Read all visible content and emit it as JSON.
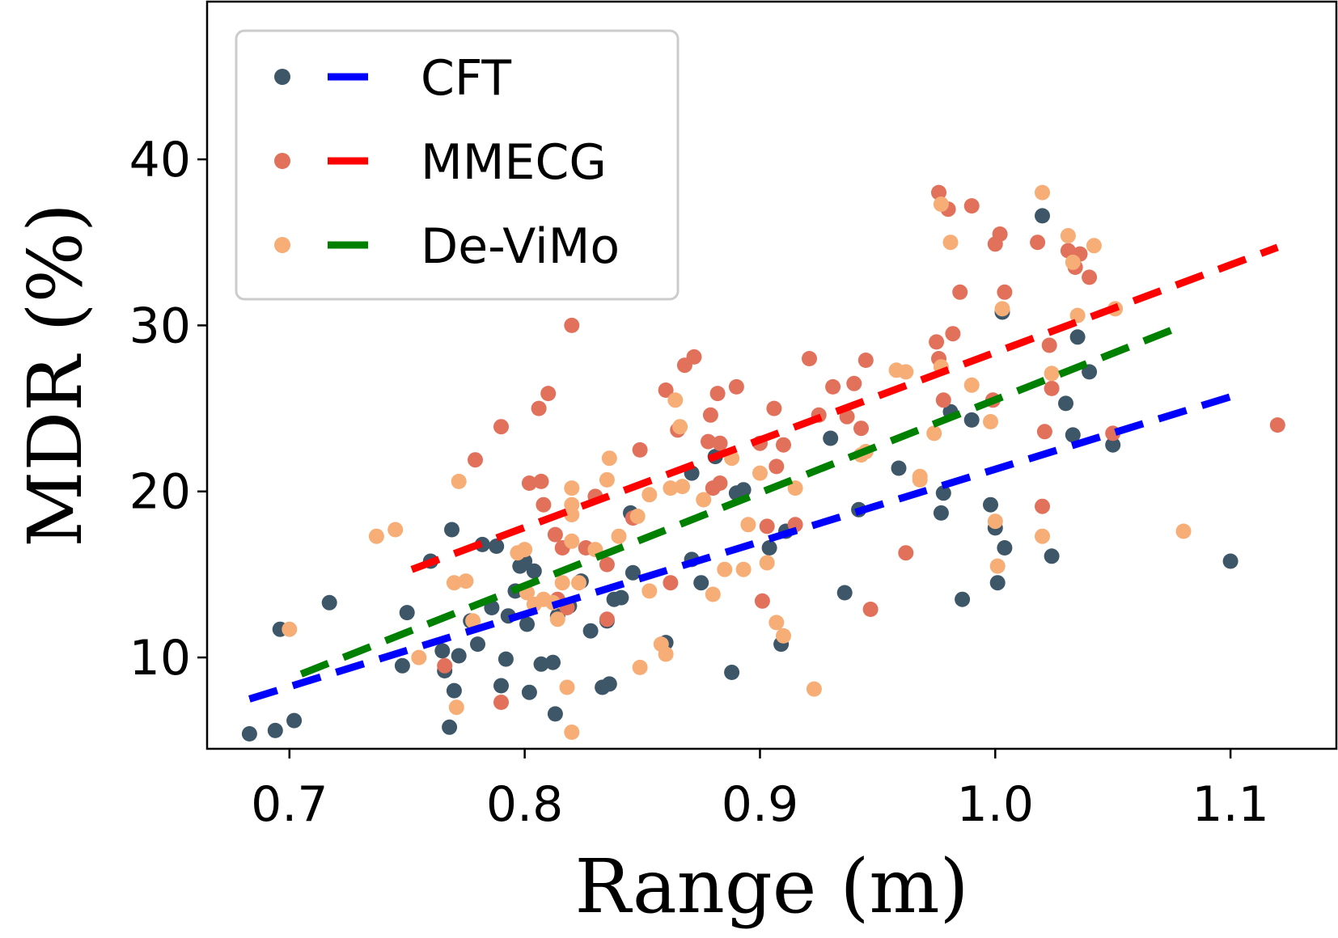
{
  "chart_data": {
    "type": "scatter",
    "title": "",
    "xlabel": "Range (m)",
    "ylabel": "MDR (%)",
    "xlim": [
      0.665,
      1.145
    ],
    "ylim": [
      4.5,
      49.5
    ],
    "xticks": [
      0.7,
      0.8,
      0.9,
      1.0,
      1.1
    ],
    "xtick_labels": [
      "0.7",
      "0.8",
      "0.9",
      "1.0",
      "1.1"
    ],
    "yticks": [
      10,
      20,
      30,
      40
    ],
    "ytick_labels": [
      "10",
      "20",
      "30",
      "40"
    ],
    "grid": false,
    "legend": "top-left",
    "series": [
      {
        "name": "CFT",
        "marker_color": "#3d5668",
        "line_color": "#0000ff",
        "trend": [
          [
            0.683,
            7.5
          ],
          [
            1.1,
            25.7
          ]
        ],
        "points": [
          [
            0.683,
            5.4
          ],
          [
            0.694,
            5.6
          ],
          [
            0.696,
            11.7
          ],
          [
            0.702,
            6.2
          ],
          [
            0.717,
            13.3
          ],
          [
            0.748,
            9.5
          ],
          [
            0.75,
            12.7
          ],
          [
            0.76,
            15.8
          ],
          [
            0.765,
            10.4
          ],
          [
            0.766,
            9.2
          ],
          [
            0.768,
            5.8
          ],
          [
            0.769,
            17.7
          ],
          [
            0.77,
            8.0
          ],
          [
            0.772,
            10.1
          ],
          [
            0.777,
            12.2
          ],
          [
            0.78,
            10.8
          ],
          [
            0.782,
            16.8
          ],
          [
            0.786,
            13.0
          ],
          [
            0.788,
            16.7
          ],
          [
            0.79,
            8.3
          ],
          [
            0.792,
            9.9
          ],
          [
            0.793,
            12.5
          ],
          [
            0.796,
            14.0
          ],
          [
            0.798,
            15.5
          ],
          [
            0.8,
            15.8
          ],
          [
            0.801,
            12.0
          ],
          [
            0.802,
            7.9
          ],
          [
            0.804,
            15.2
          ],
          [
            0.807,
            9.6
          ],
          [
            0.812,
            9.7
          ],
          [
            0.813,
            6.6
          ],
          [
            0.814,
            12.5
          ],
          [
            0.819,
            13.1
          ],
          [
            0.824,
            14.6
          ],
          [
            0.828,
            11.6
          ],
          [
            0.833,
            8.2
          ],
          [
            0.835,
            12.2
          ],
          [
            0.836,
            8.4
          ],
          [
            0.838,
            13.5
          ],
          [
            0.841,
            13.6
          ],
          [
            0.845,
            18.7
          ],
          [
            0.846,
            15.1
          ],
          [
            0.86,
            10.9
          ],
          [
            0.871,
            15.9
          ],
          [
            0.871,
            21.1
          ],
          [
            0.875,
            14.5
          ],
          [
            0.881,
            22.1
          ],
          [
            0.888,
            9.1
          ],
          [
            0.89,
            19.9
          ],
          [
            0.893,
            20.1
          ],
          [
            0.904,
            16.6
          ],
          [
            0.909,
            10.8
          ],
          [
            0.911,
            17.6
          ],
          [
            0.93,
            23.2
          ],
          [
            0.936,
            13.9
          ],
          [
            0.942,
            18.9
          ],
          [
            0.959,
            21.4
          ],
          [
            0.977,
            18.7
          ],
          [
            0.978,
            19.9
          ],
          [
            0.981,
            24.8
          ],
          [
            0.986,
            13.5
          ],
          [
            0.99,
            24.3
          ],
          [
            0.998,
            19.2
          ],
          [
            1.0,
            17.8
          ],
          [
            1.001,
            14.5
          ],
          [
            1.003,
            30.8
          ],
          [
            1.004,
            16.6
          ],
          [
            1.02,
            36.6
          ],
          [
            1.024,
            16.1
          ],
          [
            1.03,
            25.3
          ],
          [
            1.033,
            23.4
          ],
          [
            1.035,
            29.3
          ],
          [
            1.04,
            27.2
          ],
          [
            1.05,
            22.8
          ],
          [
            1.1,
            15.8
          ]
        ]
      },
      {
        "name": "MMECG",
        "marker_color": "#e2715b",
        "line_color": "#ff0000",
        "trend": [
          [
            0.752,
            15.3
          ],
          [
            1.12,
            34.7
          ]
        ],
        "points": [
          [
            0.766,
            9.5
          ],
          [
            0.779,
            21.9
          ],
          [
            0.79,
            7.3
          ],
          [
            0.79,
            23.9
          ],
          [
            0.802,
            20.5
          ],
          [
            0.807,
            20.6
          ],
          [
            0.808,
            19.2
          ],
          [
            0.806,
            25.0
          ],
          [
            0.81,
            25.9
          ],
          [
            0.813,
            17.4
          ],
          [
            0.814,
            13.5
          ],
          [
            0.816,
            16.6
          ],
          [
            0.818,
            13.0
          ],
          [
            0.82,
            30.0
          ],
          [
            0.826,
            16.6
          ],
          [
            0.83,
            19.7
          ],
          [
            0.835,
            15.6
          ],
          [
            0.835,
            12.3
          ],
          [
            0.846,
            18.4
          ],
          [
            0.849,
            22.5
          ],
          [
            0.86,
            26.1
          ],
          [
            0.862,
            14.5
          ],
          [
            0.865,
            23.7
          ],
          [
            0.868,
            27.6
          ],
          [
            0.872,
            28.1
          ],
          [
            0.878,
            23.0
          ],
          [
            0.879,
            24.6
          ],
          [
            0.88,
            20.2
          ],
          [
            0.882,
            25.9
          ],
          [
            0.883,
            22.9
          ],
          [
            0.883,
            20.5
          ],
          [
            0.89,
            26.3
          ],
          [
            0.9,
            22.9
          ],
          [
            0.901,
            13.4
          ],
          [
            0.903,
            17.9
          ],
          [
            0.906,
            25.0
          ],
          [
            0.907,
            21.5
          ],
          [
            0.91,
            22.8
          ],
          [
            0.915,
            18.0
          ],
          [
            0.921,
            28.0
          ],
          [
            0.925,
            24.6
          ],
          [
            0.931,
            26.3
          ],
          [
            0.937,
            24.5
          ],
          [
            0.94,
            26.5
          ],
          [
            0.943,
            23.8
          ],
          [
            0.945,
            27.9
          ],
          [
            0.947,
            12.9
          ],
          [
            0.962,
            16.3
          ],
          [
            0.976,
            38.0
          ],
          [
            0.975,
            29.0
          ],
          [
            0.976,
            28.0
          ],
          [
            0.978,
            25.5
          ],
          [
            0.98,
            37.0
          ],
          [
            0.982,
            29.5
          ],
          [
            0.985,
            32.0
          ],
          [
            0.99,
            37.2
          ],
          [
            0.999,
            25.5
          ],
          [
            1.0,
            34.9
          ],
          [
            1.002,
            35.5
          ],
          [
            1.004,
            32.0
          ],
          [
            1.018,
            35.0
          ],
          [
            1.02,
            19.1
          ],
          [
            1.021,
            23.6
          ],
          [
            1.023,
            28.8
          ],
          [
            1.024,
            26.2
          ],
          [
            1.031,
            34.5
          ],
          [
            1.034,
            33.5
          ],
          [
            1.036,
            34.3
          ],
          [
            1.04,
            32.9
          ],
          [
            1.05,
            23.5
          ],
          [
            1.12,
            24.0
          ]
        ]
      },
      {
        "name": "De-ViMo",
        "marker_color": "#f6ad76",
        "line_color": "#008000",
        "trend": [
          [
            0.705,
            9.0
          ],
          [
            1.08,
            30.0
          ]
        ],
        "points": [
          [
            0.7,
            11.7
          ],
          [
            0.737,
            17.3
          ],
          [
            0.745,
            17.7
          ],
          [
            0.755,
            10.0
          ],
          [
            0.77,
            14.5
          ],
          [
            0.771,
            7.0
          ],
          [
            0.772,
            20.6
          ],
          [
            0.775,
            14.6
          ],
          [
            0.778,
            12.2
          ],
          [
            0.797,
            16.3
          ],
          [
            0.8,
            16.5
          ],
          [
            0.801,
            13.9
          ],
          [
            0.804,
            13.2
          ],
          [
            0.808,
            13.5
          ],
          [
            0.812,
            13.3
          ],
          [
            0.814,
            12.3
          ],
          [
            0.816,
            14.5
          ],
          [
            0.818,
            8.2
          ],
          [
            0.82,
            5.5
          ],
          [
            0.82,
            19.2
          ],
          [
            0.82,
            20.2
          ],
          [
            0.82,
            18.6
          ],
          [
            0.82,
            17.0
          ],
          [
            0.823,
            14.5
          ],
          [
            0.83,
            16.5
          ],
          [
            0.835,
            20.7
          ],
          [
            0.836,
            22.0
          ],
          [
            0.84,
            17.3
          ],
          [
            0.848,
            18.5
          ],
          [
            0.849,
            9.4
          ],
          [
            0.853,
            14.0
          ],
          [
            0.853,
            19.8
          ],
          [
            0.858,
            10.8
          ],
          [
            0.86,
            10.2
          ],
          [
            0.862,
            20.2
          ],
          [
            0.864,
            25.5
          ],
          [
            0.866,
            23.9
          ],
          [
            0.867,
            20.3
          ],
          [
            0.876,
            19.5
          ],
          [
            0.88,
            13.8
          ],
          [
            0.885,
            15.3
          ],
          [
            0.888,
            22.0
          ],
          [
            0.893,
            15.3
          ],
          [
            0.895,
            18.0
          ],
          [
            0.9,
            21.1
          ],
          [
            0.903,
            15.7
          ],
          [
            0.907,
            12.1
          ],
          [
            0.91,
            11.3
          ],
          [
            0.915,
            20.2
          ],
          [
            0.923,
            8.1
          ],
          [
            0.943,
            22.2
          ],
          [
            0.945,
            22.4
          ],
          [
            0.958,
            27.3
          ],
          [
            0.962,
            27.2
          ],
          [
            0.968,
            20.9
          ],
          [
            0.968,
            20.7
          ],
          [
            0.974,
            23.5
          ],
          [
            0.977,
            37.3
          ],
          [
            0.977,
            27.5
          ],
          [
            0.981,
            35.0
          ],
          [
            0.99,
            26.4
          ],
          [
            0.998,
            24.2
          ],
          [
            1.0,
            18.2
          ],
          [
            1.001,
            15.5
          ],
          [
            1.003,
            31.0
          ],
          [
            1.02,
            17.3
          ],
          [
            1.02,
            38.0
          ],
          [
            1.024,
            27.1
          ],
          [
            1.031,
            35.4
          ],
          [
            1.033,
            33.8
          ],
          [
            1.035,
            30.6
          ],
          [
            1.042,
            34.8
          ],
          [
            1.051,
            31.0
          ],
          [
            1.08,
            17.6
          ]
        ]
      }
    ]
  }
}
